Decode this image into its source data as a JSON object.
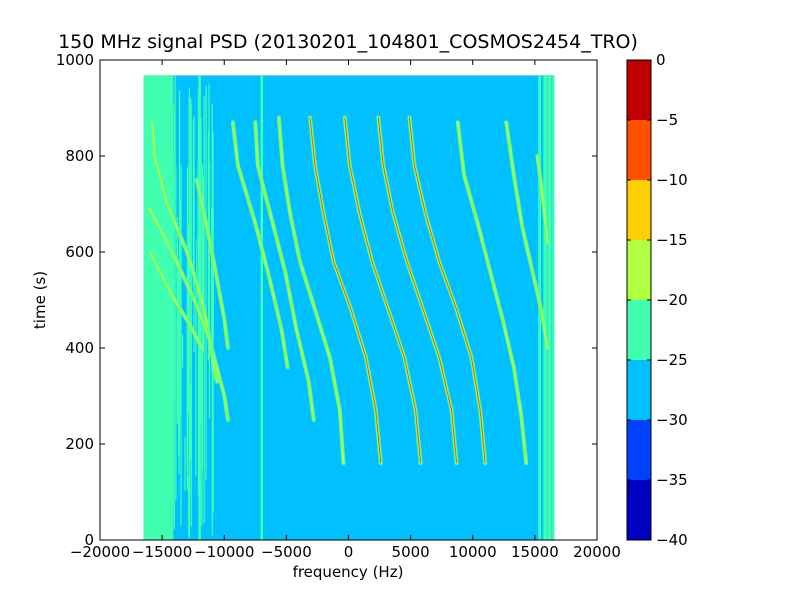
{
  "chart_data": {
    "type": "heatmap",
    "title": "150 MHz signal PSD (20130201_104801_COSMOS2454_TRO)",
    "xlabel": "frequency (Hz)",
    "ylabel": "time (s)",
    "xlim": [
      -20000,
      20000
    ],
    "ylim": [
      0,
      1000
    ],
    "x_ticks": [
      -20000,
      -15000,
      -10000,
      -5000,
      0,
      5000,
      10000,
      15000,
      20000
    ],
    "y_ticks": [
      0,
      200,
      400,
      600,
      800,
      1000
    ],
    "data_extent": {
      "x": [
        -16500,
        16500
      ],
      "y": [
        0,
        968
      ]
    },
    "background_level": "-30 to -25",
    "colorbar": {
      "ticks": [
        0,
        -5,
        -10,
        -15,
        -20,
        -25,
        -30,
        -35,
        -40
      ],
      "levels": [
        {
          "range": [
            -40,
            -35
          ],
          "color": "#0000c0"
        },
        {
          "range": [
            -35,
            -30
          ],
          "color": "#0040ff"
        },
        {
          "range": [
            -30,
            -25
          ],
          "color": "#00c0ff"
        },
        {
          "range": [
            -25,
            -20
          ],
          "color": "#40ffb0"
        },
        {
          "range": [
            -20,
            -15
          ],
          "color": "#b0ff40"
        },
        {
          "range": [
            -15,
            -10
          ],
          "color": "#ffd000"
        },
        {
          "range": [
            -10,
            -5
          ],
          "color": "#ff5000"
        },
        {
          "range": [
            -5,
            0
          ],
          "color": "#c00000"
        }
      ]
    },
    "traces": [
      {
        "t": [
          870,
          800,
          700,
          600,
          500,
          400,
          300,
          250
        ],
        "f": [
          -15800,
          -15600,
          -14600,
          -13000,
          -11800,
          -11000,
          -10000,
          -9700
        ]
      },
      {
        "t": [
          690,
          600,
          500,
          420,
          330
        ],
        "f": [
          -16000,
          -14200,
          -12400,
          -11200,
          -10600
        ]
      },
      {
        "t": [
          600,
          500,
          450,
          400
        ],
        "f": [
          -16000,
          -14000,
          -12800,
          -11800
        ]
      },
      {
        "t": [
          750,
          640,
          560,
          460,
          400
        ],
        "f": [
          -12200,
          -11300,
          -10700,
          -10000,
          -9700
        ]
      },
      {
        "t": [
          870,
          780,
          660,
          560,
          440,
          360
        ],
        "f": [
          -9300,
          -8900,
          -7500,
          -6500,
          -5400,
          -4900
        ]
      },
      {
        "t": [
          870,
          780,
          660,
          560,
          440,
          330,
          250
        ],
        "f": [
          -7500,
          -7300,
          -6100,
          -5100,
          -4200,
          -3200,
          -2800
        ]
      },
      {
        "t": [
          880,
          780,
          680,
          580,
          480,
          380,
          270,
          160
        ],
        "f": [
          -5600,
          -5300,
          -4700,
          -3900,
          -2700,
          -1500,
          -700,
          -400
        ]
      },
      {
        "t": [
          880,
          780,
          680,
          580,
          480,
          380,
          270,
          160
        ],
        "f": [
          -3100,
          -2700,
          -2000,
          -1200,
          200,
          1400,
          2200,
          2600
        ]
      },
      {
        "t": [
          880,
          780,
          680,
          580,
          480,
          380,
          270,
          160
        ],
        "f": [
          -300,
          100,
          900,
          1900,
          3200,
          4500,
          5400,
          5800
        ]
      },
      {
        "t": [
          880,
          780,
          680,
          580,
          480,
          380,
          270,
          160
        ],
        "f": [
          2400,
          2800,
          3600,
          4700,
          6000,
          7300,
          8300,
          8700
        ]
      },
      {
        "t": [
          880,
          780,
          680,
          580,
          480,
          380,
          270,
          160
        ],
        "f": [
          4900,
          5300,
          6200,
          7300,
          8700,
          9900,
          10600,
          11000
        ]
      },
      {
        "t": [
          870,
          760,
          660,
          560,
          460,
          360,
          260,
          160
        ],
        "f": [
          8800,
          9300,
          10400,
          11400,
          12400,
          13300,
          13900,
          14300
        ]
      },
      {
        "t": [
          870,
          760,
          650,
          560,
          470,
          400
        ],
        "f": [
          12700,
          13300,
          14000,
          14800,
          15600,
          16000
        ]
      },
      {
        "t": [
          800,
          700,
          620
        ],
        "f": [
          15200,
          15700,
          16000
        ]
      }
    ],
    "vertical_lines": [
      -7000,
      -12000
    ]
  }
}
